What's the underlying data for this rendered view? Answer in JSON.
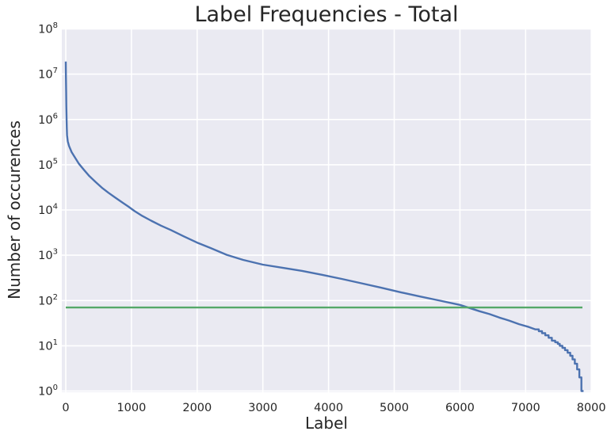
{
  "chart_data": {
    "type": "line",
    "title": "Label Frequencies - Total",
    "xlabel": "Label",
    "ylabel": "Number of occurences",
    "x_ticks": [
      0,
      1000,
      2000,
      3000,
      4000,
      5000,
      6000,
      7000,
      8000
    ],
    "y_tick_exponents": [
      0,
      1,
      2,
      3,
      4,
      5,
      6,
      7,
      8
    ],
    "y_tick_base": "10",
    "xlim": [
      -60,
      8010
    ],
    "ylim_log_exponents": [
      0,
      8
    ],
    "grid": true,
    "legend_position": "none",
    "colors": {
      "plot_background": "#EAEAF2",
      "grid_line": "#FFFFFF",
      "text": "#262626",
      "curve": "#4C72B0",
      "threshold": "#55A868"
    },
    "series": [
      {
        "name": "label-frequency-curve",
        "color": "#4C72B0",
        "points": [
          [
            0,
            19000000
          ],
          [
            3,
            9000000
          ],
          [
            6,
            4000000
          ],
          [
            9,
            2000000
          ],
          [
            12,
            1100000
          ],
          [
            16,
            650000
          ],
          [
            20,
            450000
          ],
          [
            30,
            330000
          ],
          [
            50,
            260000
          ],
          [
            90,
            190000
          ],
          [
            140,
            145000
          ],
          [
            200,
            105000
          ],
          [
            280,
            76000
          ],
          [
            360,
            56000
          ],
          [
            450,
            42000
          ],
          [
            550,
            31000
          ],
          [
            650,
            24000
          ],
          [
            750,
            19000
          ],
          [
            850,
            15000
          ],
          [
            950,
            12000
          ],
          [
            1050,
            9400
          ],
          [
            1150,
            7600
          ],
          [
            1300,
            5800
          ],
          [
            1450,
            4500
          ],
          [
            1600,
            3600
          ],
          [
            1800,
            2600
          ],
          [
            2000,
            1900
          ],
          [
            2200,
            1450
          ],
          [
            2450,
            1020
          ],
          [
            2700,
            790
          ],
          [
            3000,
            620
          ],
          [
            3300,
            530
          ],
          [
            3600,
            450
          ],
          [
            3900,
            370
          ],
          [
            4200,
            300
          ],
          [
            4500,
            240
          ],
          [
            4800,
            192
          ],
          [
            5100,
            152
          ],
          [
            5400,
            122
          ],
          [
            5700,
            99
          ],
          [
            6000,
            80
          ],
          [
            6150,
            68
          ],
          [
            6300,
            58
          ],
          [
            6450,
            50
          ],
          [
            6600,
            42
          ],
          [
            6750,
            36
          ],
          [
            6900,
            30
          ],
          [
            7050,
            26
          ],
          [
            7150,
            23
          ],
          [
            7200,
            23
          ],
          [
            7200,
            21
          ],
          [
            7250,
            21
          ],
          [
            7250,
            19
          ],
          [
            7300,
            19
          ],
          [
            7300,
            17
          ],
          [
            7350,
            17
          ],
          [
            7350,
            15
          ],
          [
            7400,
            15
          ],
          [
            7400,
            13
          ],
          [
            7450,
            13
          ],
          [
            7450,
            12
          ],
          [
            7490,
            12
          ],
          [
            7490,
            11
          ],
          [
            7520,
            11
          ],
          [
            7520,
            10
          ],
          [
            7560,
            10
          ],
          [
            7560,
            9
          ],
          [
            7600,
            9
          ],
          [
            7600,
            8
          ],
          [
            7640,
            8
          ],
          [
            7640,
            7
          ],
          [
            7680,
            7
          ],
          [
            7680,
            6
          ],
          [
            7715,
            6
          ],
          [
            7715,
            5
          ],
          [
            7750,
            5
          ],
          [
            7750,
            4
          ],
          [
            7785,
            4
          ],
          [
            7785,
            3
          ],
          [
            7818,
            3
          ],
          [
            7818,
            2
          ],
          [
            7850,
            2
          ],
          [
            7850,
            1
          ],
          [
            7882,
            1
          ]
        ]
      },
      {
        "name": "threshold-line",
        "color": "#55A868",
        "points": [
          [
            0,
            70
          ],
          [
            7865,
            70
          ]
        ]
      }
    ]
  }
}
